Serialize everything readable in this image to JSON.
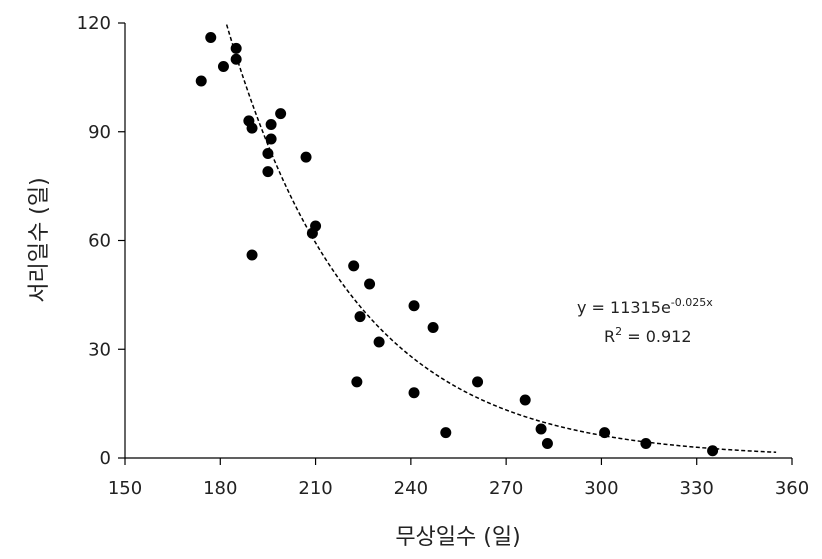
{
  "chart_data": {
    "type": "scatter",
    "xlabel": "무상일수 (일)",
    "ylabel": "서리일수 (일)",
    "xlim": [
      150,
      360
    ],
    "ylim": [
      0,
      120
    ],
    "xticks": [
      150,
      180,
      210,
      240,
      270,
      300,
      330,
      360
    ],
    "yticks": [
      0,
      30,
      60,
      90,
      120
    ],
    "grid": false,
    "points": [
      {
        "x": 174,
        "y": 104
      },
      {
        "x": 177,
        "y": 116
      },
      {
        "x": 181,
        "y": 108
      },
      {
        "x": 185,
        "y": 113
      },
      {
        "x": 185,
        "y": 110
      },
      {
        "x": 189,
        "y": 93
      },
      {
        "x": 190,
        "y": 91
      },
      {
        "x": 195,
        "y": 84
      },
      {
        "x": 195,
        "y": 79
      },
      {
        "x": 196,
        "y": 92
      },
      {
        "x": 196,
        "y": 88
      },
      {
        "x": 199,
        "y": 95
      },
      {
        "x": 190,
        "y": 56
      },
      {
        "x": 207,
        "y": 83
      },
      {
        "x": 209,
        "y": 62
      },
      {
        "x": 210,
        "y": 64
      },
      {
        "x": 222,
        "y": 53
      },
      {
        "x": 224,
        "y": 39
      },
      {
        "x": 227,
        "y": 48
      },
      {
        "x": 230,
        "y": 32
      },
      {
        "x": 223,
        "y": 21
      },
      {
        "x": 241,
        "y": 42
      },
      {
        "x": 247,
        "y": 36
      },
      {
        "x": 241,
        "y": 18
      },
      {
        "x": 251,
        "y": 7
      },
      {
        "x": 261,
        "y": 21
      },
      {
        "x": 276,
        "y": 16
      },
      {
        "x": 281,
        "y": 8
      },
      {
        "x": 283,
        "y": 4
      },
      {
        "x": 301,
        "y": 7
      },
      {
        "x": 314,
        "y": 4
      },
      {
        "x": 335,
        "y": 2
      }
    ],
    "trendline": {
      "type": "exponential",
      "a": 11315,
      "b": -0.025,
      "x_range": [
        180,
        355
      ],
      "style": "dashed"
    },
    "annotation": {
      "equation_base": "y = 11315e",
      "equation_exponent": "-0.025x",
      "r2_prefix": "R",
      "r2_sup": "2",
      "r2_value": " = 0.912"
    },
    "colors": {
      "marker": "#000000",
      "axis": "#000000",
      "trendline": "#000000"
    }
  }
}
